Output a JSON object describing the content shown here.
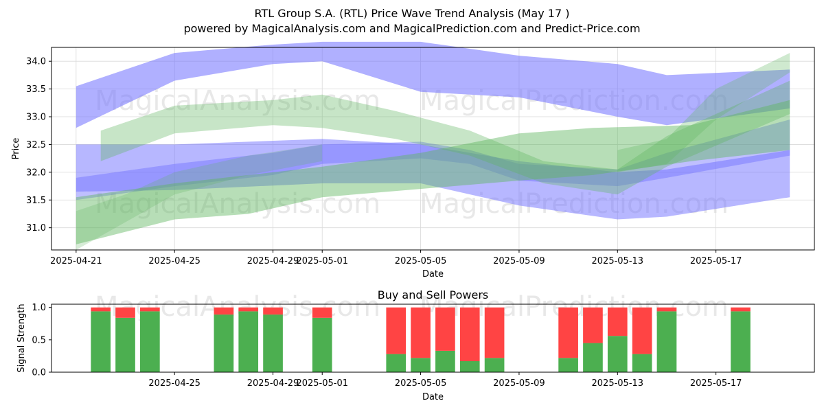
{
  "title": "RTL Group S.A. (RTL) Price Wave Trend Analysis (May 17 )",
  "subtitle": "powered by MagicalAnalysis.com and MagicalPrediction.com and Predict-Price.com",
  "watermarks": [
    "MagicalAnalysis.com",
    "MagicalPrediction.com"
  ],
  "colors": {
    "up": "#4caf50",
    "down": "#ff4444",
    "band_blue": "#7070ff",
    "band_green": "#5fb55f"
  },
  "chart_data": [
    {
      "type": "area",
      "title": "",
      "xlabel": "Date",
      "ylabel": "Price",
      "x_range": [
        "2025-04-20",
        "2025-05-21"
      ],
      "ylim": [
        30.6,
        34.25
      ],
      "yticks": [
        31.0,
        31.5,
        32.0,
        32.5,
        33.0,
        33.5,
        34.0
      ],
      "ytick_labels": [
        "31.0",
        "31.5",
        "32.0",
        "32.5",
        "33.0",
        "33.5",
        "34.0"
      ],
      "xticks": [
        "2025-04-21",
        "2025-04-25",
        "2025-04-29",
        "2025-05-01",
        "2025-05-05",
        "2025-05-09",
        "2025-05-13",
        "2025-05-17"
      ],
      "grid": true,
      "series": [
        {
          "name": "blue-upper-band",
          "color": "blue",
          "opacity": 0.55,
          "x": [
            "2025-04-21",
            "2025-04-25",
            "2025-04-29",
            "2025-05-01",
            "2025-05-05",
            "2025-05-09",
            "2025-05-13",
            "2025-05-15",
            "2025-05-20"
          ],
          "lo": [
            32.8,
            33.65,
            33.95,
            34.0,
            33.45,
            33.35,
            33.0,
            32.85,
            33.15
          ],
          "hi": [
            33.55,
            34.15,
            34.3,
            34.35,
            34.35,
            34.1,
            33.95,
            33.75,
            33.85
          ]
        },
        {
          "name": "blue-lower-band",
          "color": "blue",
          "opacity": 0.5,
          "x": [
            "2025-04-21",
            "2025-04-25",
            "2025-05-01",
            "2025-05-05",
            "2025-05-09",
            "2025-05-13",
            "2025-05-15",
            "2025-05-20"
          ],
          "lo": [
            31.65,
            31.68,
            31.8,
            31.8,
            31.4,
            31.15,
            31.2,
            31.55
          ],
          "hi": [
            32.5,
            32.5,
            32.6,
            32.5,
            32.2,
            32.0,
            32.05,
            32.4
          ]
        },
        {
          "name": "blue-middle-band",
          "color": "blue",
          "opacity": 0.45,
          "x": [
            "2025-04-21",
            "2025-04-25",
            "2025-04-29",
            "2025-05-01",
            "2025-05-05",
            "2025-05-07",
            "2025-05-09",
            "2025-05-13",
            "2025-05-15",
            "2025-05-20"
          ],
          "lo": [
            31.5,
            31.75,
            31.95,
            32.15,
            32.25,
            32.15,
            31.85,
            31.75,
            31.9,
            32.3
          ],
          "hi": [
            31.9,
            32.15,
            32.35,
            32.5,
            32.55,
            32.4,
            32.15,
            32.05,
            32.35,
            32.95
          ]
        },
        {
          "name": "green-upper-band",
          "color": "green",
          "opacity": 0.35,
          "x": [
            "2025-04-22",
            "2025-04-25",
            "2025-04-29",
            "2025-05-01",
            "2025-05-04",
            "2025-05-07",
            "2025-05-10",
            "2025-05-13",
            "2025-05-15",
            "2025-05-20"
          ],
          "lo": [
            32.2,
            32.7,
            32.85,
            32.8,
            32.6,
            32.3,
            31.8,
            31.6,
            32.1,
            33.05
          ],
          "hi": [
            32.75,
            33.2,
            33.3,
            33.4,
            33.1,
            32.75,
            32.2,
            32.05,
            32.65,
            33.65
          ]
        },
        {
          "name": "green-lower-band",
          "color": "green",
          "opacity": 0.45,
          "x": [
            "2025-04-21",
            "2025-04-25",
            "2025-04-28",
            "2025-05-01",
            "2025-05-05",
            "2025-05-09",
            "2025-05-12",
            "2025-05-16",
            "2025-05-20"
          ],
          "lo": [
            30.7,
            31.15,
            31.25,
            31.55,
            31.7,
            31.85,
            31.95,
            32.2,
            32.4
          ],
          "hi": [
            31.55,
            31.8,
            31.95,
            32.1,
            32.35,
            32.7,
            32.8,
            32.85,
            33.3
          ]
        },
        {
          "name": "green-lower-outline",
          "color": "green",
          "opacity": 0.25,
          "x": [
            "2025-04-21",
            "2025-04-23",
            "2025-04-25",
            "2025-04-28",
            "2025-05-01"
          ],
          "lo": [
            30.6,
            31.1,
            31.6,
            31.95,
            32.2
          ],
          "hi": [
            31.3,
            31.6,
            32.0,
            32.3,
            32.5
          ]
        },
        {
          "name": "green-rise-band",
          "color": "green",
          "opacity": 0.3,
          "x": [
            "2025-05-13",
            "2025-05-15",
            "2025-05-17",
            "2025-05-20"
          ],
          "lo": [
            32.0,
            32.15,
            32.95,
            33.8
          ],
          "hi": [
            32.4,
            32.6,
            33.5,
            34.15
          ]
        }
      ]
    },
    {
      "type": "bar",
      "title": "Buy and Sell Powers",
      "xlabel": "Date",
      "ylabel": "Signal Strength",
      "ylim": [
        0,
        1.05
      ],
      "yticks": [
        0.0,
        0.5,
        1.0
      ],
      "ytick_labels": [
        "0.0",
        "0.5",
        "1.0"
      ],
      "xticks": [
        "2025-04-25",
        "2025-04-29",
        "2025-05-01",
        "2025-05-05",
        "2025-05-09",
        "2025-05-13",
        "2025-05-17"
      ],
      "x_range": [
        "2025-04-20",
        "2025-05-21"
      ],
      "categories": [
        "2025-04-22",
        "2025-04-23",
        "2025-04-24",
        "2025-04-27",
        "2025-04-28",
        "2025-04-29",
        "2025-05-01",
        "2025-05-04",
        "2025-05-05",
        "2025-05-06",
        "2025-05-07",
        "2025-05-08",
        "2025-05-11",
        "2025-05-12",
        "2025-05-13",
        "2025-05-14",
        "2025-05-15",
        "2025-05-18"
      ],
      "series": [
        {
          "name": "Buy",
          "color": "up",
          "values": [
            0.94,
            0.84,
            0.94,
            0.89,
            0.94,
            0.89,
            0.84,
            0.28,
            0.22,
            0.33,
            0.17,
            0.22,
            0.22,
            0.45,
            0.56,
            0.28,
            0.94,
            0.94
          ]
        },
        {
          "name": "Sell",
          "color": "down",
          "values": [
            0.06,
            0.16,
            0.06,
            0.11,
            0.06,
            0.11,
            0.16,
            0.72,
            0.78,
            0.67,
            0.83,
            0.78,
            0.78,
            0.55,
            0.44,
            0.72,
            0.06,
            0.06
          ]
        }
      ]
    }
  ]
}
